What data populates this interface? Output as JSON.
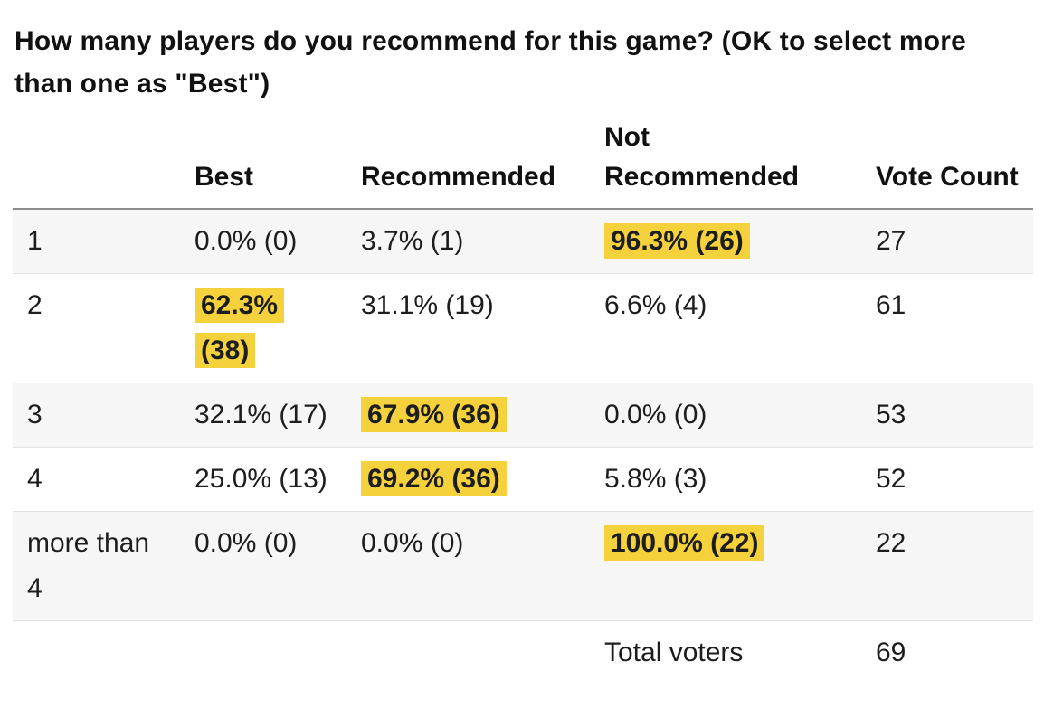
{
  "title": "How many players do you recommend for this game? (OK to select more than one as \"Best\")",
  "colors": {
    "highlight": "#f5d23c",
    "row_alt_bg": "#f6f6f6",
    "header_border": "#8c8c8c",
    "row_border": "#e2e2e2",
    "text": "#1d1d1d"
  },
  "table": {
    "headers": [
      "",
      "Best",
      "Recommended",
      "Not Recommended",
      "Vote Count"
    ],
    "rows": [
      {
        "shaded": true,
        "label": "1",
        "cells": [
          {
            "text": "0.0% (0)",
            "highlight": false
          },
          {
            "text": "3.7% (1)",
            "highlight": false
          },
          {
            "text": "96.3% (26)",
            "highlight": true
          }
        ],
        "vote_count": "27"
      },
      {
        "shaded": false,
        "label": "2",
        "cells": [
          {
            "text": "62.3% (38)",
            "highlight": true
          },
          {
            "text": "31.1% (19)",
            "highlight": false
          },
          {
            "text": "6.6% (4)",
            "highlight": false
          }
        ],
        "vote_count": "61"
      },
      {
        "shaded": true,
        "label": "3",
        "cells": [
          {
            "text": "32.1% (17)",
            "highlight": false
          },
          {
            "text": "67.9% (36)",
            "highlight": true
          },
          {
            "text": "0.0% (0)",
            "highlight": false
          }
        ],
        "vote_count": "53"
      },
      {
        "shaded": false,
        "label": "4",
        "cells": [
          {
            "text": "25.0% (13)",
            "highlight": false
          },
          {
            "text": "69.2% (36)",
            "highlight": true
          },
          {
            "text": "5.8% (3)",
            "highlight": false
          }
        ],
        "vote_count": "52"
      },
      {
        "shaded": true,
        "label": "more than 4",
        "cells": [
          {
            "text": "0.0% (0)",
            "highlight": false
          },
          {
            "text": "0.0% (0)",
            "highlight": false
          },
          {
            "text": "100.0% (22)",
            "highlight": true
          }
        ],
        "vote_count": "22"
      }
    ],
    "footer": {
      "label": "Total voters",
      "value": "69"
    }
  }
}
